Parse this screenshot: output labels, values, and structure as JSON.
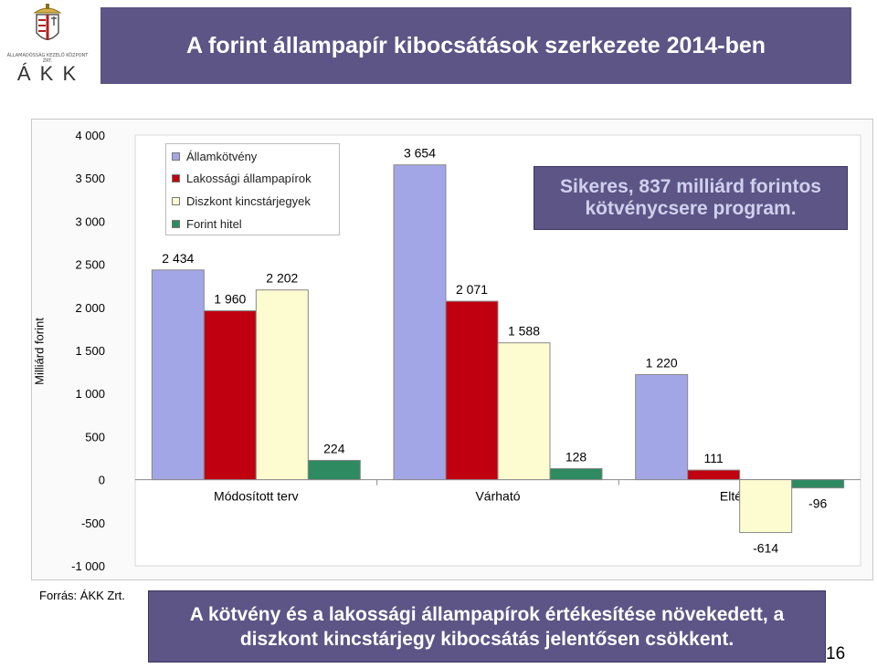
{
  "header": {
    "title": "A  forint állampapír kibocsátások szerkezete 2014-ben",
    "logo_name": "ÁLLAMADÓSSÁG KEZELŐ KÖZPONT ZRT.",
    "logo_letters": "Á K K"
  },
  "callout": "Sikeres, 837 milliárd forintos kötvénycsere program.",
  "footer": {
    "source": "Forrás: ÁKK Zrt.",
    "conclusion": "A kötvény és a lakossági állampapírok értékesítése növekedett, a diszkont kincstárjegy kibocsátás jelentősen csökkent.",
    "page_number": "16"
  },
  "colors": {
    "header_bg": "#5c5585",
    "series": [
      "#a3a6e6",
      "#c00010",
      "#fdfcd0",
      "#2e8a60"
    ]
  },
  "chart_data": {
    "type": "bar",
    "ylabel": "Milliárd forint",
    "ylim": [
      -1000,
      4000
    ],
    "yticks": [
      -1000,
      -500,
      0,
      500,
      1000,
      1500,
      2000,
      2500,
      3000,
      3500,
      4000
    ],
    "ytick_labels": [
      "-1 000",
      "-500",
      "0",
      "500",
      "1 000",
      "1 500",
      "2 000",
      "2 500",
      "3 000",
      "3 500",
      "4 000"
    ],
    "categories": [
      "Módosított terv",
      "Várható",
      "Eltérés"
    ],
    "series": [
      {
        "name": "Államkötvény",
        "values": [
          2434,
          3654,
          1220
        ],
        "labels": [
          "2 434",
          "3 654",
          "1 220"
        ]
      },
      {
        "name": "Lakossági állampapírok",
        "values": [
          1960,
          2071,
          111
        ],
        "labels": [
          "1 960",
          "2 071",
          "111"
        ]
      },
      {
        "name": "Diszkont kincstárjegyek",
        "values": [
          2202,
          1588,
          -614
        ],
        "labels": [
          "2 202",
          "1 588",
          "-614"
        ]
      },
      {
        "name": "Forint hitel",
        "values": [
          224,
          128,
          -96
        ],
        "labels": [
          "224",
          "128",
          "-96"
        ]
      }
    ],
    "grid": false,
    "legend": "top-left"
  }
}
